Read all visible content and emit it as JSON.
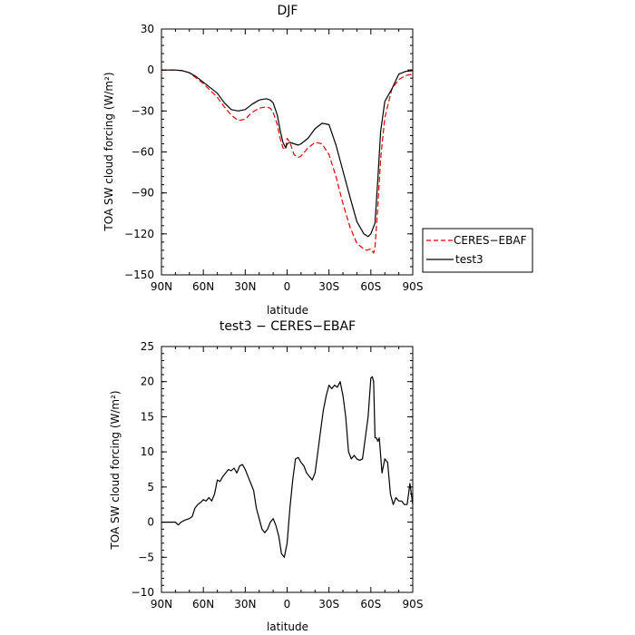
{
  "chart_data": [
    {
      "type": "line",
      "title": "DJF",
      "xlabel": "latitude",
      "ylabel": "TOA SW cloud forcing (W/m²)",
      "xlim": [
        90,
        -90
      ],
      "ylim": [
        -150,
        30
      ],
      "xticks": [
        90,
        60,
        30,
        0,
        -30,
        -60,
        -90
      ],
      "xtick_labels": [
        "90N",
        "60N",
        "30N",
        "0",
        "30S",
        "60S",
        "90S"
      ],
      "yticks": [
        30,
        0,
        -30,
        -60,
        -90,
        -120,
        -150
      ],
      "ytick_labels": [
        "30",
        "0",
        "−30",
        "−60",
        "−90",
        "−120",
        "−150"
      ],
      "grid": false,
      "legend": "right",
      "series": [
        {
          "name": "CERES−EBAF",
          "color": "#e00000",
          "dash": "dashed",
          "x": [
            90,
            80,
            75,
            70,
            65,
            60,
            55,
            50,
            45,
            40,
            35,
            30,
            25,
            20,
            15,
            12,
            10,
            7,
            5,
            3,
            1,
            0,
            -2,
            -5,
            -8,
            -10,
            -15,
            -20,
            -25,
            -30,
            -35,
            -40,
            -45,
            -50,
            -55,
            -57,
            -60,
            -62,
            -63,
            -65,
            -67,
            -70,
            -75,
            -80,
            -85,
            -90
          ],
          "y": [
            0,
            0,
            -0.5,
            -2,
            -6,
            -10,
            -15,
            -20,
            -27,
            -33,
            -37,
            -36,
            -31,
            -28,
            -27,
            -28,
            -31,
            -40,
            -50,
            -57,
            -58,
            -50,
            -53,
            -62,
            -64,
            -63,
            -57,
            -53,
            -54,
            -62,
            -78,
            -98,
            -115,
            -127,
            -131,
            -132,
            -131,
            -134,
            -130,
            -100,
            -65,
            -35,
            -14,
            -7,
            -4,
            -3
          ]
        },
        {
          "name": "test3",
          "color": "#000000",
          "dash": "solid",
          "x": [
            90,
            80,
            75,
            70,
            65,
            60,
            55,
            50,
            45,
            40,
            35,
            30,
            25,
            20,
            15,
            12,
            10,
            7,
            5,
            3,
            1,
            0,
            -2,
            -5,
            -8,
            -10,
            -15,
            -20,
            -25,
            -30,
            -35,
            -40,
            -45,
            -50,
            -55,
            -58,
            -60,
            -63,
            -65,
            -67,
            -70,
            -75,
            -80,
            -85,
            -90
          ],
          "y": [
            0,
            0,
            -0.5,
            -2,
            -5,
            -9,
            -13,
            -17,
            -24,
            -29,
            -30,
            -29,
            -25,
            -22,
            -21,
            -22,
            -24,
            -33,
            -44,
            -53,
            -57,
            -54,
            -53,
            -54,
            -55,
            -54,
            -50,
            -43,
            -39,
            -40,
            -55,
            -74,
            -93,
            -111,
            -120,
            -122,
            -120,
            -112,
            -80,
            -45,
            -23,
            -14,
            -3,
            -1,
            -0.5
          ]
        }
      ]
    },
    {
      "type": "line",
      "title": "test3 − CERES−EBAF",
      "xlabel": "latitude",
      "ylabel": "TOA SW cloud forcing (W/m²)",
      "xlim": [
        90,
        -90
      ],
      "ylim": [
        -10,
        25
      ],
      "xticks": [
        90,
        60,
        30,
        0,
        -30,
        -60,
        -90
      ],
      "xtick_labels": [
        "90N",
        "60N",
        "30N",
        "0",
        "30S",
        "60S",
        "90S"
      ],
      "yticks": [
        25,
        20,
        15,
        10,
        5,
        0,
        -5,
        -10
      ],
      "ytick_labels": [
        "25",
        "20",
        "15",
        "10",
        "5",
        "0",
        "−5",
        "−10"
      ],
      "grid": false,
      "series": [
        {
          "name": "",
          "color": "#000000",
          "dash": "solid",
          "x": [
            90,
            80,
            78,
            76,
            73,
            70,
            68,
            66,
            64,
            62,
            60,
            58,
            56,
            54,
            52,
            50,
            48,
            46,
            44,
            42,
            40,
            38,
            36,
            34,
            32,
            30,
            28,
            26,
            24,
            22,
            20,
            18,
            16,
            14,
            12,
            10,
            8,
            6,
            4,
            2,
            0,
            -2,
            -4,
            -6,
            -8,
            -10,
            -12,
            -14,
            -16,
            -18,
            -20,
            -22,
            -24,
            -26,
            -28,
            -30,
            -32,
            -34,
            -36,
            -38,
            -40,
            -42,
            -44,
            -46,
            -48,
            -50,
            -52,
            -54,
            -56,
            -58,
            -60,
            -61,
            -62,
            -63,
            -64,
            -65,
            -66,
            -68,
            -70,
            -72,
            -74,
            -76,
            -78,
            -80,
            -82,
            -84,
            -86,
            -88,
            -90
          ],
          "y": [
            0,
            0,
            -0.4,
            0,
            0.3,
            0.5,
            0.8,
            2,
            2.5,
            2.8,
            3.2,
            3,
            3.5,
            3,
            4,
            6,
            5.8,
            6.5,
            7,
            7.5,
            7.3,
            7.7,
            7,
            8,
            8.2,
            7.5,
            6.5,
            5.5,
            4.5,
            2,
            0.5,
            -1,
            -1.5,
            -1,
            0,
            0.5,
            -0.5,
            -2,
            -4.5,
            -5,
            -3,
            2,
            6,
            9,
            9.2,
            8.5,
            8,
            7,
            6.5,
            6,
            7,
            10,
            13,
            16,
            18,
            19.5,
            19,
            19.5,
            19.2,
            20,
            18,
            15,
            10,
            9,
            9.5,
            9,
            8.8,
            9,
            12,
            15,
            20.5,
            20.7,
            20,
            12,
            12,
            11.5,
            12,
            7,
            9,
            8.5,
            4,
            2.5,
            3.5,
            3,
            3,
            2.5,
            2.5,
            5.5,
            2.5
          ]
        }
      ]
    }
  ]
}
